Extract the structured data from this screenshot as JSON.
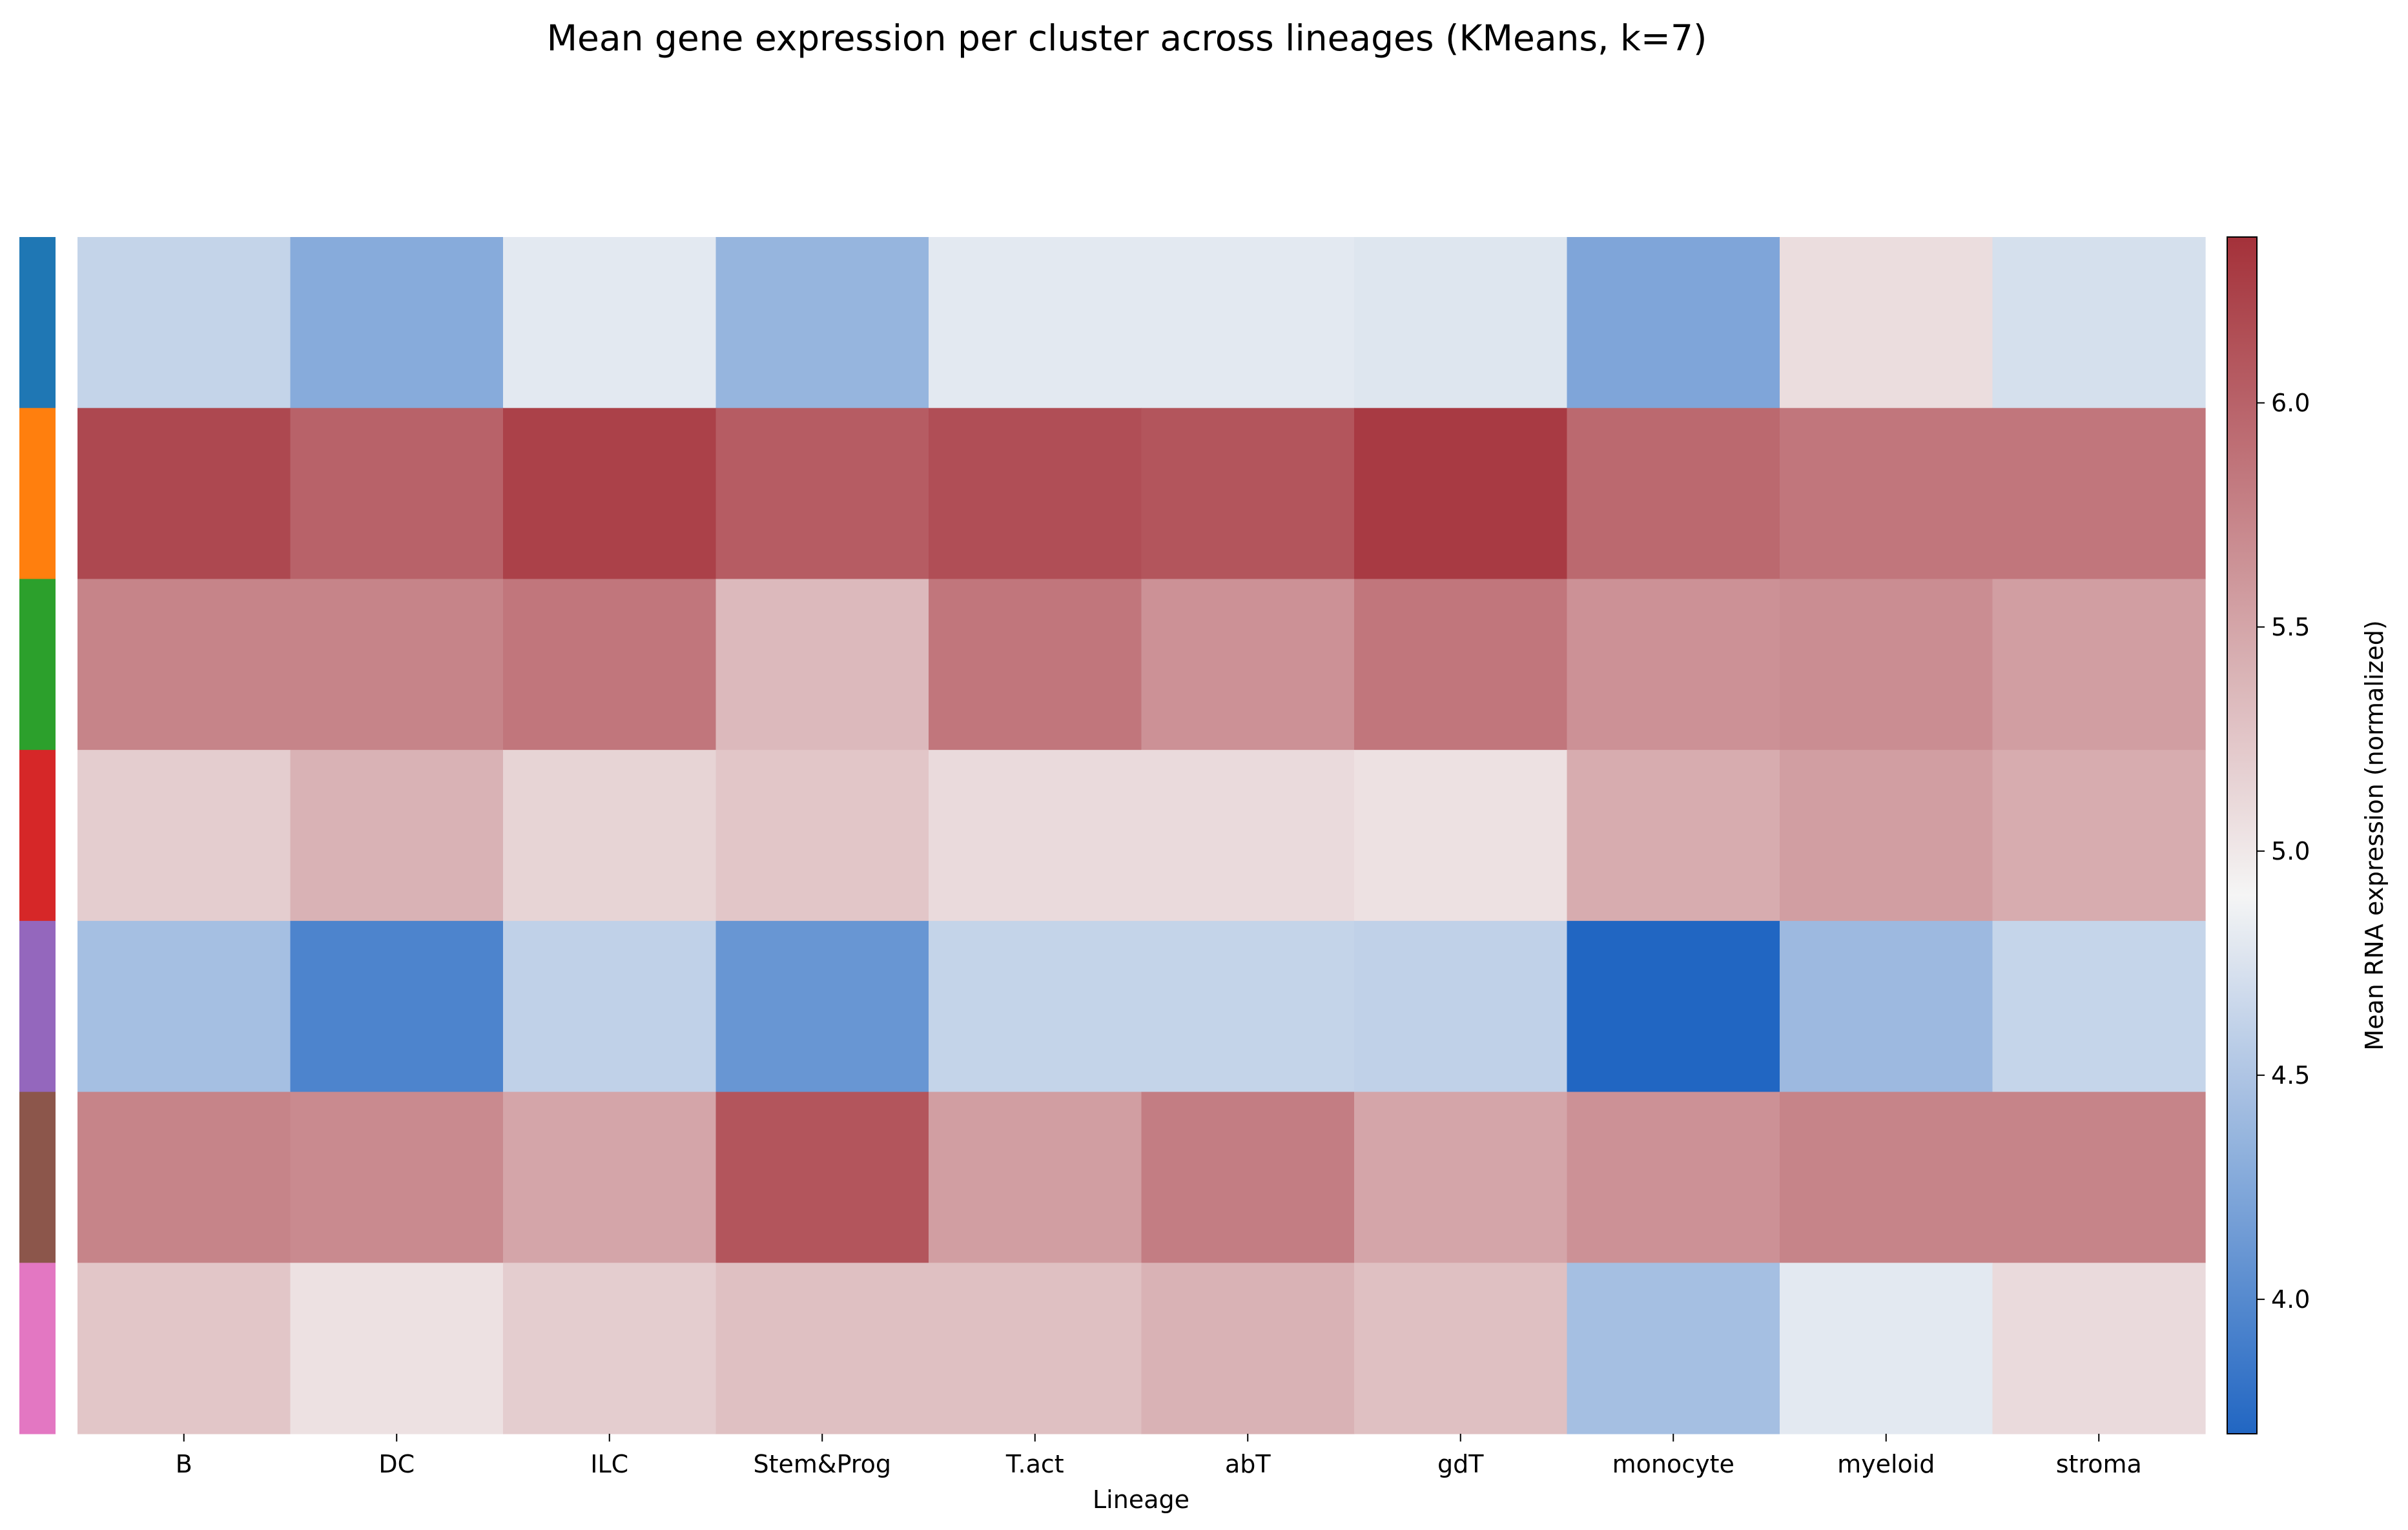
{
  "chart_data": {
    "type": "heatmap",
    "title": "Mean gene expression per cluster across lineages (KMeans, k=7)",
    "xlabel": "Lineage",
    "ylabel": "",
    "x_categories": [
      "B",
      "DC",
      "ILC",
      "Stem&Prog",
      "T.act",
      "abT",
      "gdT",
      "monocyte",
      "myeloid",
      "stroma"
    ],
    "row_cluster_colors": [
      "#1f77b4",
      "#ff7f0e",
      "#2ca02c",
      "#d62728",
      "#9467bd",
      "#8c564b",
      "#e377c2"
    ],
    "values": [
      [
        4.62,
        4.28,
        4.8,
        4.36,
        4.8,
        4.8,
        4.77,
        4.23,
        5.08,
        4.72
      ],
      [
        6.2,
        6.0,
        6.25,
        6.05,
        6.15,
        6.1,
        6.3,
        5.95,
        5.85,
        5.85
      ],
      [
        5.75,
        5.75,
        5.85,
        5.35,
        5.85,
        5.65,
        5.85,
        5.65,
        5.68,
        5.55
      ],
      [
        5.2,
        5.4,
        5.15,
        5.25,
        5.1,
        5.1,
        5.05,
        5.45,
        5.55,
        5.45
      ],
      [
        4.45,
        3.95,
        4.6,
        4.1,
        4.62,
        4.62,
        4.6,
        3.7,
        4.4,
        4.63
      ],
      [
        5.75,
        5.7,
        5.5,
        6.1,
        5.55,
        5.8,
        5.5,
        5.65,
        5.75,
        5.75
      ],
      [
        5.25,
        5.05,
        5.2,
        5.3,
        5.3,
        5.4,
        5.3,
        4.45,
        4.8,
        5.1
      ]
    ],
    "colorbar": {
      "label": "Mean RNA expression (normalized)",
      "vmin": 3.7,
      "vmax": 6.37,
      "center": 4.9,
      "ticks": [
        "4.0",
        "4.5",
        "5.0",
        "5.5",
        "6.0"
      ],
      "color_low": "#2166c2",
      "color_mid": "#f5f5f5",
      "color_high": "#a4313a"
    }
  }
}
